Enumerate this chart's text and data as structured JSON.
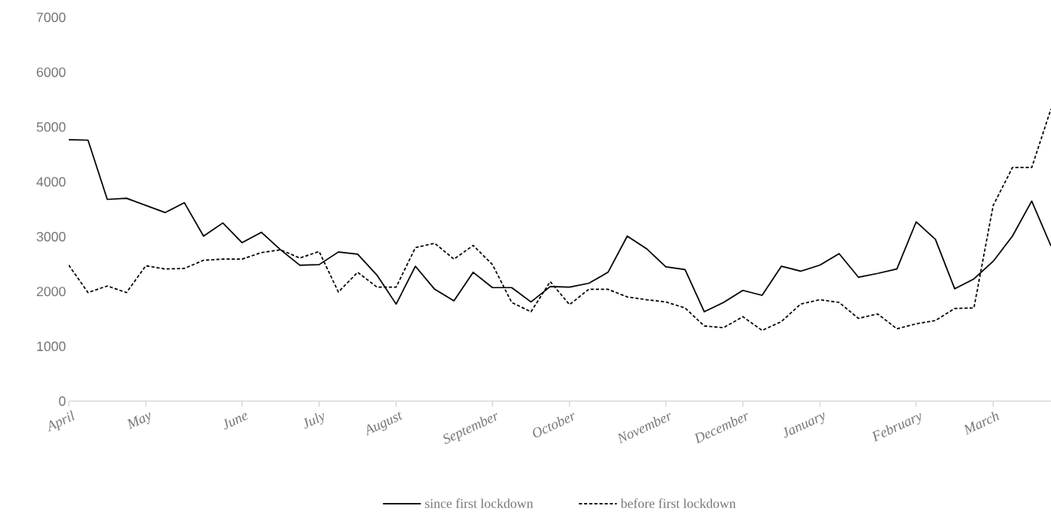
{
  "chart_data": {
    "type": "line",
    "categories": [
      "April",
      null,
      null,
      null,
      "May",
      null,
      null,
      null,
      null,
      "June",
      null,
      null,
      null,
      "July",
      null,
      null,
      null,
      "August",
      null,
      null,
      null,
      null,
      "September",
      null,
      null,
      null,
      "October",
      null,
      null,
      null,
      null,
      "November",
      null,
      null,
      null,
      "December",
      null,
      null,
      null,
      "January",
      null,
      null,
      null,
      null,
      "February",
      null,
      null,
      null,
      "March",
      null,
      null,
      null
    ],
    "series": [
      {
        "name": "since first lockdown",
        "color": "#000000",
        "line_style": "solid",
        "values": [
          4770,
          4760,
          3680,
          3700,
          3570,
          3440,
          3620,
          3010,
          3250,
          2890,
          3080,
          2760,
          2480,
          2490,
          2720,
          2680,
          2300,
          1770,
          2460,
          2040,
          1830,
          2350,
          2070,
          2070,
          1810,
          2090,
          2080,
          2150,
          2350,
          3010,
          2780,
          2450,
          2400,
          1630,
          1800,
          2020,
          1930,
          2460,
          2370,
          2480,
          2690,
          2260,
          2330,
          2410,
          3270,
          2950,
          2050,
          2230,
          2550,
          3010,
          3650,
          2830
        ]
      },
      {
        "name": "before first lockdown",
        "color": "#000000",
        "line_style": "dashed",
        "values": [
          2480,
          1980,
          2100,
          1980,
          2470,
          2410,
          2420,
          2570,
          2590,
          2590,
          2710,
          2760,
          2610,
          2730,
          1990,
          2350,
          2080,
          2080,
          2800,
          2880,
          2590,
          2840,
          2490,
          1800,
          1630,
          2180,
          1760,
          2040,
          2040,
          1900,
          1850,
          1810,
          1700,
          1370,
          1340,
          1540,
          1290,
          1450,
          1770,
          1850,
          1800,
          1510,
          1590,
          1320,
          1410,
          1470,
          1690,
          1700,
          3570,
          4260,
          4260,
          5330
        ]
      }
    ],
    "ylim": [
      0,
      7000
    ],
    "yticks": [
      0,
      1000,
      2000,
      3000,
      4000,
      5000,
      6000,
      7000
    ],
    "legend": "bottom"
  }
}
